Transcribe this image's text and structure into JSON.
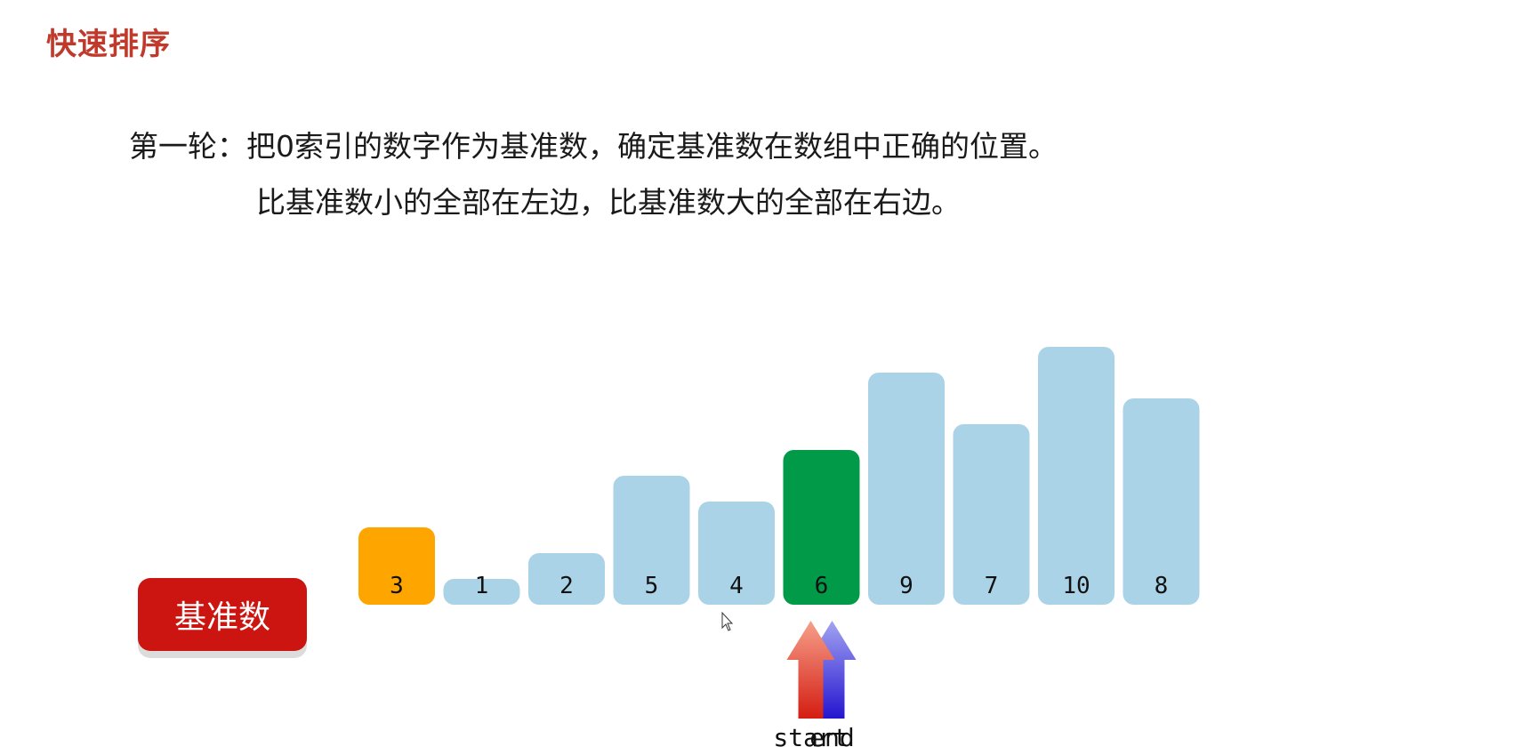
{
  "title": "快速排序",
  "description": {
    "line1": "第一轮：把0索引的数字作为基准数，确定基准数在数组中正确的位置。",
    "line2": "比基准数小的全部在左边，比基准数大的全部在右边。"
  },
  "pivot_badge": "基准数",
  "array": {
    "values": [
      3,
      1,
      2,
      5,
      4,
      6,
      9,
      7,
      10,
      8
    ],
    "pivot_index": 0,
    "current_index": 5,
    "colors": {
      "default": "#abd3e7",
      "pivot": "#ffa500",
      "current": "#009a49"
    }
  },
  "pointers": {
    "start": {
      "label": "start",
      "index": 5,
      "color": "#e03020"
    },
    "end": {
      "label": "end",
      "index": 5,
      "color": "#3020d8"
    }
  }
}
